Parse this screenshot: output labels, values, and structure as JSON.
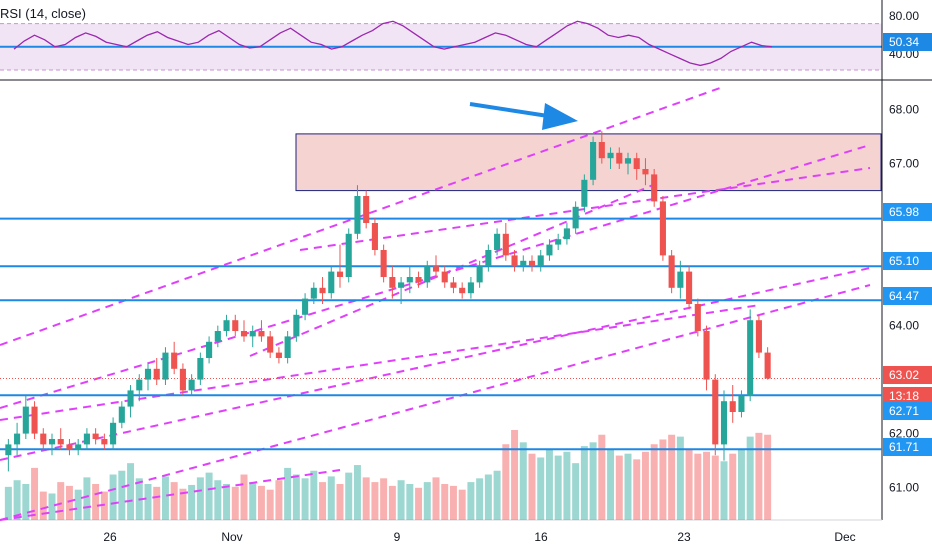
{
  "rsi_panel": {
    "title": "RSI (14, close)",
    "y_ticks": [
      "80.00",
      "40.00"
    ],
    "value_label": "50.34",
    "band_upper": 70,
    "band_lower": 30,
    "center": 50,
    "ylim": [
      30,
      80
    ],
    "values": [
      48,
      55,
      60,
      56,
      50,
      52,
      58,
      62,
      59,
      54,
      52,
      50,
      55,
      60,
      63,
      58,
      55,
      52,
      54,
      60,
      64,
      58,
      52,
      49,
      50,
      56,
      62,
      66,
      60,
      54,
      52,
      48,
      50,
      55,
      60,
      64,
      70,
      72,
      68,
      62,
      56,
      50,
      48,
      50,
      52,
      54,
      58,
      62,
      60,
      56,
      52,
      50,
      56,
      62,
      68,
      72,
      70,
      66,
      60,
      58,
      60,
      58,
      52,
      48,
      44,
      40,
      36,
      34,
      36,
      40,
      46,
      50,
      54,
      51,
      50
    ]
  },
  "price_panel": {
    "y_ticks": [
      "68.00",
      "67.00",
      "65.10",
      "64.00",
      "62.00",
      "61.00"
    ],
    "x_labels": [
      "26",
      "Nov",
      "9",
      "16",
      "23",
      "Dec"
    ],
    "price_labels": [
      {
        "text": "65.98",
        "color": "#2196f3"
      },
      {
        "text": "65.10",
        "color": "#2196f3"
      },
      {
        "text": "64.47",
        "color": "#2196f3"
      },
      {
        "text": "63.02",
        "color": "#ef5350"
      },
      {
        "text": "13:18",
        "color": "#ef5350"
      },
      {
        "text": "62.71",
        "color": "#2196f3"
      },
      {
        "text": "61.71",
        "color": "#2196f3"
      }
    ]
  },
  "chart_data": {
    "type": "candlestick",
    "x_axis_labels": [
      "26",
      "Nov",
      "9",
      "16",
      "23",
      "Dec"
    ],
    "y_range": [
      60.4,
      68.4
    ],
    "horizontal_levels": [
      65.98,
      65.1,
      64.47,
      62.71,
      61.71
    ],
    "current_price": 63.02,
    "supply_zone": {
      "low": 66.5,
      "high": 67.55
    },
    "candles": [
      [
        61.6,
        61.9,
        61.3,
        61.8
      ],
      [
        61.8,
        62.2,
        61.6,
        62.0
      ],
      [
        62.0,
        62.7,
        61.9,
        62.5
      ],
      [
        62.5,
        62.6,
        61.9,
        62.0
      ],
      [
        62.0,
        62.1,
        61.7,
        61.8
      ],
      [
        61.8,
        62.0,
        61.6,
        61.9
      ],
      [
        61.9,
        62.1,
        61.7,
        61.8
      ],
      [
        61.8,
        61.9,
        61.6,
        61.7
      ],
      [
        61.7,
        61.9,
        61.6,
        61.8
      ],
      [
        61.8,
        62.1,
        61.7,
        62.0
      ],
      [
        62.0,
        62.1,
        61.8,
        61.9
      ],
      [
        61.9,
        62.0,
        61.7,
        61.8
      ],
      [
        61.8,
        62.3,
        61.7,
        62.2
      ],
      [
        62.2,
        62.6,
        62.1,
        62.5
      ],
      [
        62.5,
        62.9,
        62.3,
        62.8
      ],
      [
        62.8,
        63.1,
        62.6,
        63.0
      ],
      [
        63.0,
        63.3,
        62.8,
        63.2
      ],
      [
        63.2,
        63.4,
        62.9,
        63.0
      ],
      [
        63.0,
        63.6,
        62.9,
        63.5
      ],
      [
        63.5,
        63.7,
        63.1,
        63.2
      ],
      [
        63.2,
        63.3,
        62.7,
        62.8
      ],
      [
        62.8,
        63.1,
        62.7,
        63.0
      ],
      [
        63.0,
        63.5,
        62.9,
        63.4
      ],
      [
        63.4,
        63.8,
        63.3,
        63.7
      ],
      [
        63.7,
        64.0,
        63.6,
        63.9
      ],
      [
        63.9,
        64.2,
        63.8,
        64.1
      ],
      [
        64.1,
        64.2,
        63.8,
        63.9
      ],
      [
        63.9,
        64.1,
        63.7,
        63.8
      ],
      [
        63.8,
        64.0,
        63.6,
        63.9
      ],
      [
        63.9,
        64.1,
        63.7,
        63.8
      ],
      [
        63.8,
        63.9,
        63.4,
        63.5
      ],
      [
        63.5,
        63.6,
        63.3,
        63.4
      ],
      [
        63.4,
        63.9,
        63.3,
        63.8
      ],
      [
        63.8,
        64.3,
        63.7,
        64.2
      ],
      [
        64.2,
        64.6,
        64.1,
        64.5
      ],
      [
        64.5,
        64.8,
        64.4,
        64.7
      ],
      [
        64.7,
        64.9,
        64.4,
        64.6
      ],
      [
        64.6,
        65.1,
        64.5,
        65.0
      ],
      [
        65.0,
        65.5,
        64.7,
        64.9
      ],
      [
        64.9,
        65.8,
        64.8,
        65.7
      ],
      [
        65.7,
        66.6,
        65.6,
        66.4
      ],
      [
        66.4,
        66.5,
        65.8,
        65.9
      ],
      [
        65.9,
        66.0,
        65.3,
        65.4
      ],
      [
        65.4,
        65.5,
        64.8,
        64.9
      ],
      [
        64.9,
        65.1,
        64.5,
        64.7
      ],
      [
        64.7,
        64.9,
        64.4,
        64.8
      ],
      [
        64.8,
        65.1,
        64.6,
        64.9
      ],
      [
        64.9,
        65.0,
        64.7,
        64.8
      ],
      [
        64.8,
        65.2,
        64.7,
        65.1
      ],
      [
        65.1,
        65.3,
        64.9,
        65.0
      ],
      [
        65.0,
        65.1,
        64.7,
        64.8
      ],
      [
        64.8,
        64.9,
        64.6,
        64.7
      ],
      [
        64.7,
        64.8,
        64.5,
        64.6
      ],
      [
        64.6,
        64.9,
        64.5,
        64.8
      ],
      [
        64.8,
        65.2,
        64.7,
        65.1
      ],
      [
        65.1,
        65.5,
        65.0,
        65.4
      ],
      [
        65.4,
        65.8,
        65.3,
        65.7
      ],
      [
        65.7,
        65.9,
        65.2,
        65.3
      ],
      [
        65.3,
        65.4,
        65.0,
        65.1
      ],
      [
        65.1,
        65.3,
        65.0,
        65.2
      ],
      [
        65.2,
        65.3,
        65.0,
        65.1
      ],
      [
        65.1,
        65.4,
        65.0,
        65.3
      ],
      [
        65.3,
        65.6,
        65.2,
        65.5
      ],
      [
        65.5,
        65.7,
        65.4,
        65.6
      ],
      [
        65.6,
        65.9,
        65.5,
        65.8
      ],
      [
        65.8,
        66.3,
        65.7,
        66.2
      ],
      [
        66.2,
        66.8,
        66.1,
        66.7
      ],
      [
        66.7,
        67.5,
        66.6,
        67.4
      ],
      [
        67.4,
        67.6,
        67.0,
        67.1
      ],
      [
        67.1,
        67.3,
        66.9,
        67.2
      ],
      [
        67.2,
        67.3,
        66.9,
        67.0
      ],
      [
        67.0,
        67.2,
        66.8,
        67.1
      ],
      [
        67.1,
        67.2,
        66.7,
        66.9
      ],
      [
        66.9,
        67.1,
        66.6,
        66.8
      ],
      [
        66.8,
        66.9,
        66.2,
        66.3
      ],
      [
        66.3,
        66.4,
        65.2,
        65.3
      ],
      [
        65.3,
        65.4,
        64.6,
        64.7
      ],
      [
        64.7,
        65.2,
        64.5,
        65.0
      ],
      [
        65.0,
        65.1,
        64.3,
        64.4
      ],
      [
        64.4,
        64.5,
        63.8,
        63.9
      ],
      [
        63.9,
        64.0,
        62.8,
        63.0
      ],
      [
        63.0,
        63.1,
        61.6,
        61.8
      ],
      [
        61.8,
        62.8,
        61.5,
        62.6
      ],
      [
        62.6,
        62.9,
        62.2,
        62.4
      ],
      [
        62.4,
        62.8,
        62.3,
        62.7
      ],
      [
        62.7,
        64.3,
        62.6,
        64.1
      ],
      [
        64.1,
        64.2,
        63.4,
        63.5
      ],
      [
        63.5,
        63.6,
        63.0,
        63.02
      ]
    ],
    "volumes": [
      35,
      42,
      38,
      55,
      30,
      28,
      40,
      36,
      32,
      45,
      38,
      30,
      48,
      52,
      60,
      44,
      38,
      35,
      46,
      40,
      33,
      37,
      45,
      50,
      42,
      38,
      35,
      48,
      40,
      36,
      32,
      42,
      55,
      48,
      44,
      52,
      40,
      46,
      38,
      50,
      58,
      45,
      40,
      44,
      36,
      42,
      38,
      34,
      40,
      45,
      38,
      36,
      32,
      40,
      44,
      48,
      52,
      80,
      95,
      82,
      70,
      66,
      74,
      68,
      72,
      60,
      78,
      82,
      90,
      74,
      68,
      70,
      64,
      72,
      80,
      85,
      90,
      88,
      75,
      70,
      72,
      68,
      62,
      70,
      74,
      88,
      92,
      90
    ]
  }
}
